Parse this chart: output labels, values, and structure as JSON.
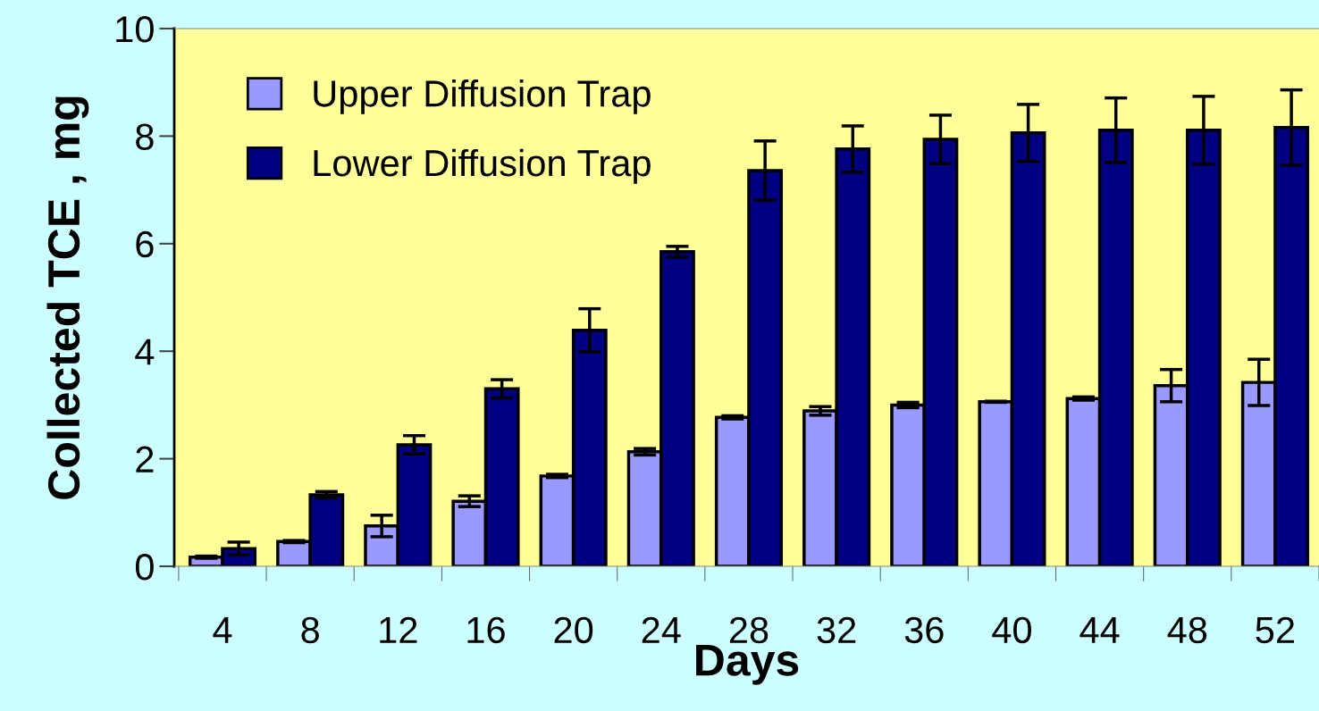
{
  "chart_data": {
    "type": "bar",
    "xlabel": "Days",
    "ylabel": "Collected TCE , mg",
    "categories": [
      "4",
      "8",
      "12",
      "16",
      "20",
      "24",
      "28",
      "32",
      "36",
      "40",
      "44",
      "48",
      "52"
    ],
    "series": [
      {
        "name": "Upper Diffusion Trap",
        "color": "#9999ff",
        "values": [
          0.17,
          0.46,
          0.75,
          1.21,
          1.68,
          2.13,
          2.77,
          2.89,
          3.0,
          3.06,
          3.12,
          3.36,
          3.42
        ],
        "errors": [
          0.02,
          0.02,
          0.2,
          0.1,
          0.03,
          0.06,
          0.03,
          0.08,
          0.05,
          0.01,
          0.03,
          0.3,
          0.43
        ]
      },
      {
        "name": "Lower Diffusion Trap",
        "color": "#000080",
        "values": [
          0.33,
          1.33,
          2.26,
          3.3,
          4.39,
          5.85,
          7.36,
          7.76,
          7.94,
          8.06,
          8.11,
          8.11,
          8.16
        ],
        "errors": [
          0.12,
          0.06,
          0.17,
          0.17,
          0.4,
          0.1,
          0.55,
          0.43,
          0.45,
          0.53,
          0.6,
          0.63,
          0.7
        ]
      }
    ],
    "ylim": [
      0,
      10
    ],
    "yticks": [
      0,
      2,
      4,
      6,
      8,
      10
    ],
    "grid": false,
    "legend": "top left"
  }
}
